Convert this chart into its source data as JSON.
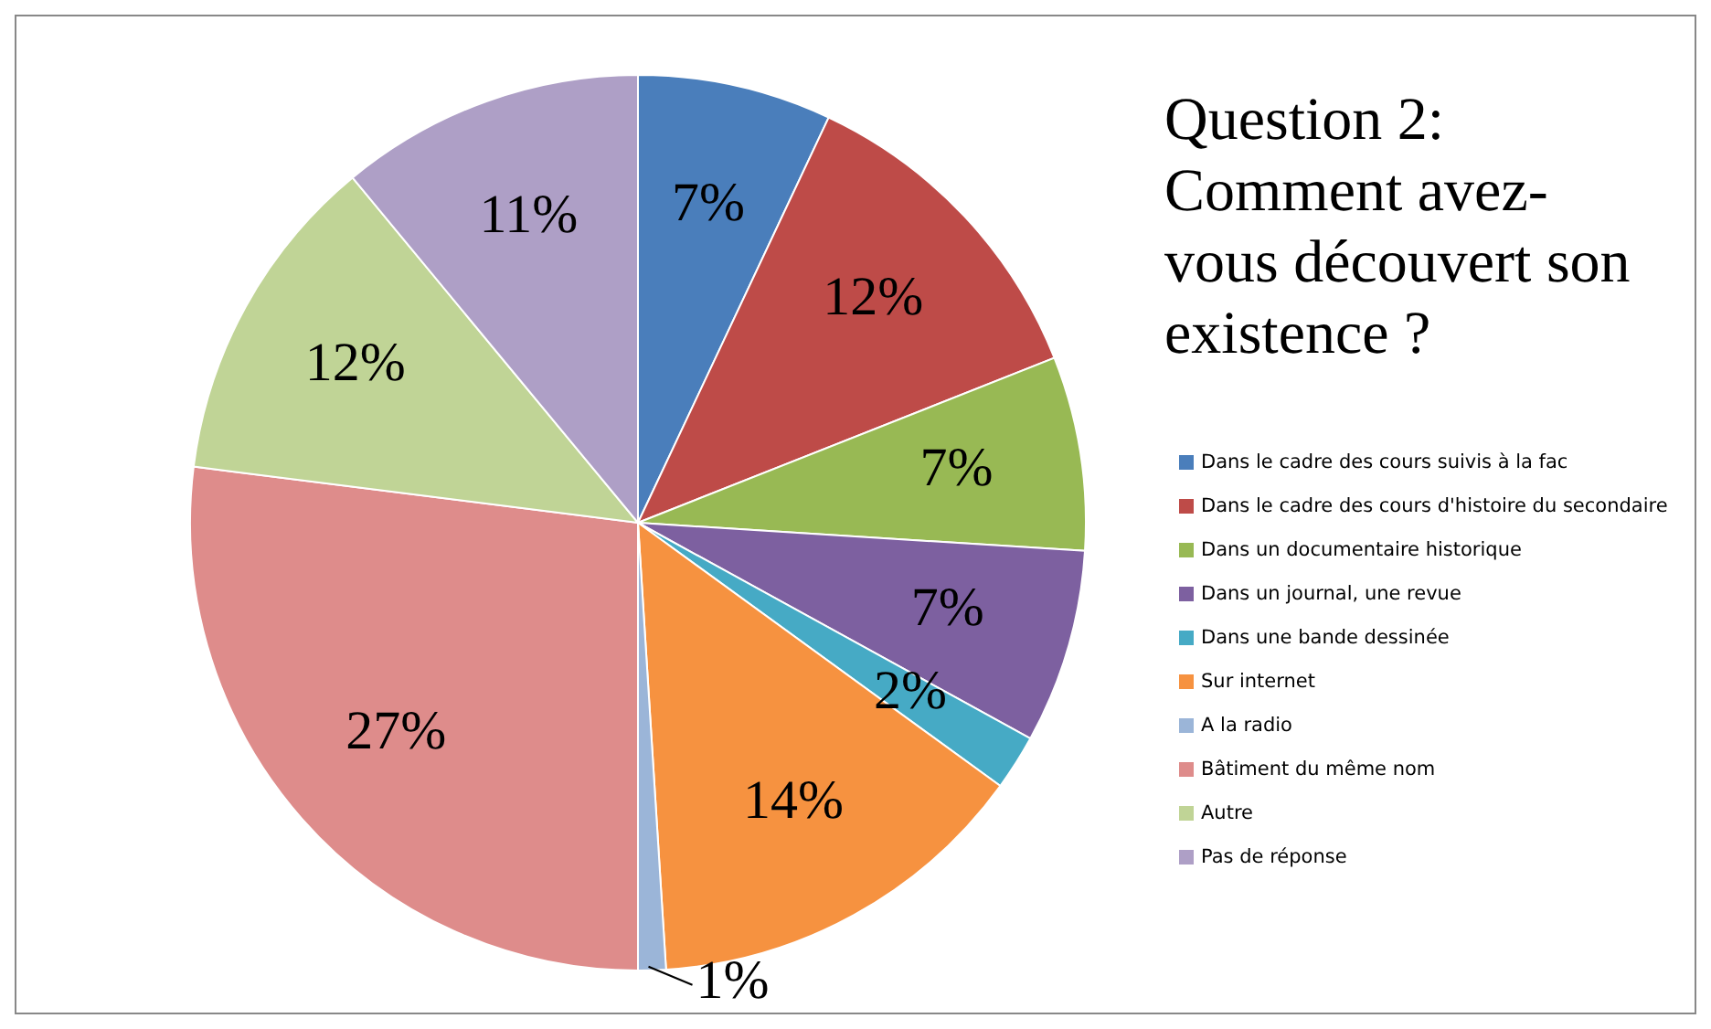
{
  "chart_data": {
    "type": "pie",
    "title": "Question 2: Comment avez-vous découvert son existence ?",
    "categories": [
      "Dans le cadre des cours suivis à la fac",
      "Dans le cadre des cours d'histoire du secondaire",
      "Dans un documentaire historique",
      "Dans un journal, une revue",
      "Dans une bande dessinée",
      "Sur internet",
      "A la radio",
      "Bâtiment du même nom",
      "Autre",
      "Pas de réponse"
    ],
    "values": [
      7,
      12,
      7,
      7,
      2,
      14,
      1,
      27,
      12,
      11
    ],
    "colors": [
      "#4a7ebb",
      "#be4b48",
      "#98b954",
      "#7d60a0",
      "#46aac5",
      "#f69240",
      "#9bb5d8",
      "#de8c8b",
      "#c0d496",
      "#ae9fc6"
    ],
    "value_labels": [
      "7%",
      "12%",
      "7%",
      "7%",
      "2%",
      "14%",
      "1%",
      "27%",
      "12%",
      "11%"
    ],
    "legend": "right"
  }
}
